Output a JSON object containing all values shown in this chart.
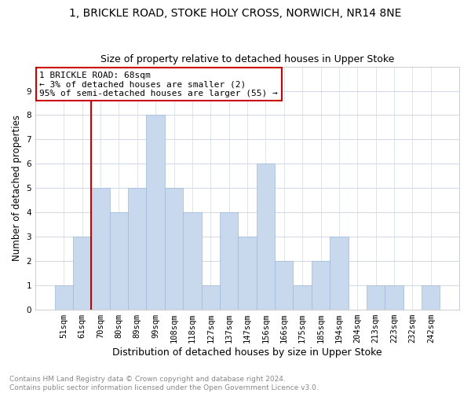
{
  "title": "1, BRICKLE ROAD, STOKE HOLY CROSS, NORWICH, NR14 8NE",
  "subtitle": "Size of property relative to detached houses in Upper Stoke",
  "xlabel": "Distribution of detached houses by size in Upper Stoke",
  "ylabel": "Number of detached properties",
  "categories": [
    "51sqm",
    "61sqm",
    "70sqm",
    "80sqm",
    "89sqm",
    "99sqm",
    "108sqm",
    "118sqm",
    "127sqm",
    "137sqm",
    "147sqm",
    "156sqm",
    "166sqm",
    "175sqm",
    "185sqm",
    "194sqm",
    "204sqm",
    "213sqm",
    "223sqm",
    "232sqm",
    "242sqm"
  ],
  "values": [
    1,
    3,
    5,
    4,
    5,
    8,
    5,
    4,
    1,
    4,
    3,
    6,
    2,
    1,
    2,
    3,
    0,
    1,
    1,
    0,
    1
  ],
  "bar_color": "#c9d9ed",
  "bar_edge_color": "#a0b8d8",
  "grid_color": "#d0d8e8",
  "annotation_box_text": "1 BRICKLE ROAD: 68sqm\n← 3% of detached houses are smaller (2)\n95% of semi-detached houses are larger (55) →",
  "annotation_box_color": "#ffffff",
  "annotation_box_edge_color": "#cc0000",
  "annotation_line_color": "#cc0000",
  "ylim": [
    0,
    10
  ],
  "yticks": [
    0,
    1,
    2,
    3,
    4,
    5,
    6,
    7,
    8,
    9,
    10
  ],
  "footnote": "Contains HM Land Registry data © Crown copyright and database right 2024.\nContains public sector information licensed under the Open Government Licence v3.0.",
  "title_fontsize": 10,
  "subtitle_fontsize": 9,
  "xlabel_fontsize": 9,
  "ylabel_fontsize": 8.5,
  "tick_fontsize": 7.5,
  "annot_fontsize": 8,
  "footnote_fontsize": 6.5
}
